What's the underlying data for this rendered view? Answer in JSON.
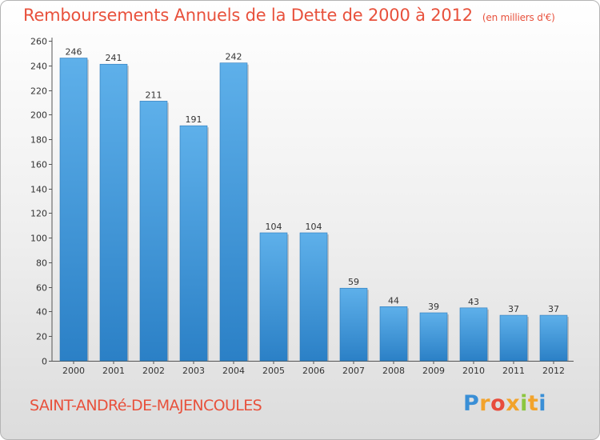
{
  "header": {
    "title": "Remboursements Annuels de la Dette de 2000 à 2012",
    "unit": "(en milliers d'€)"
  },
  "footer": {
    "commune": "SAINT-ANDRé-DE-MAJENCOULES",
    "logo_letters": [
      "P",
      "r",
      "o",
      "x",
      "i",
      "t",
      "i"
    ],
    "logo_colors": [
      "#3a8fd6",
      "#f2a32b",
      "#e84c3d",
      "#f2a32b",
      "#8cc63f",
      "#f2a32b",
      "#3a8fd6"
    ]
  },
  "chart_data": {
    "type": "bar",
    "title": "Remboursements Annuels de la Dette de 2000 à 2012",
    "xlabel": "",
    "ylabel": "",
    "categories": [
      "2000",
      "2001",
      "2002",
      "2003",
      "2004",
      "2005",
      "2006",
      "2007",
      "2008",
      "2009",
      "2010",
      "2011",
      "2012"
    ],
    "values": [
      246,
      241,
      211,
      191,
      242,
      104,
      104,
      59,
      44,
      39,
      43,
      37,
      37
    ],
    "ylim": [
      0,
      260
    ],
    "yticks": [
      0,
      20,
      40,
      60,
      80,
      100,
      120,
      140,
      160,
      180,
      200,
      220,
      240,
      260
    ],
    "grid": false,
    "bar_color": "#4ea3e0"
  }
}
